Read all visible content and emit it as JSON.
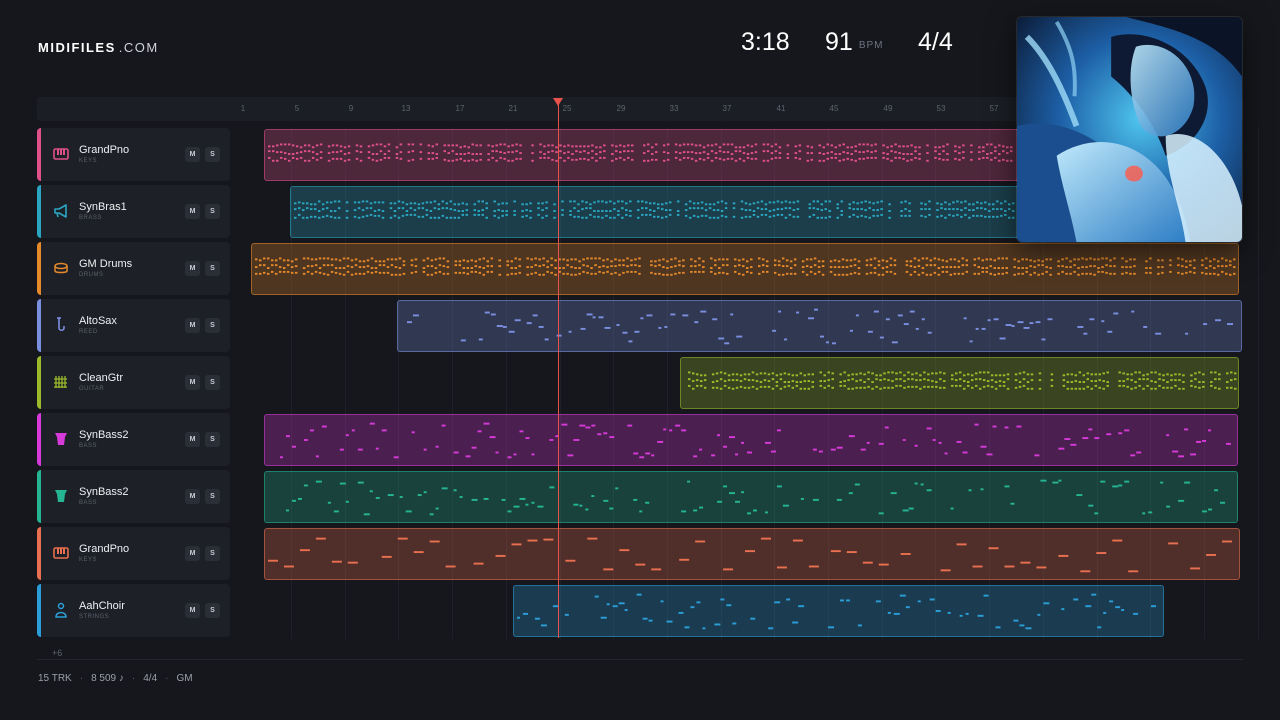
{
  "brand": {
    "name": "MIDIFILES",
    "suffix": ".COM"
  },
  "header": {
    "time": "3:18",
    "bpm": "91",
    "bpm_unit": "BPM",
    "signature": "4/4"
  },
  "ruler": {
    "bars": [
      "1",
      "5",
      "9",
      "13",
      "17",
      "21",
      "25",
      "29",
      "33",
      "37",
      "41",
      "45",
      "49",
      "53",
      "57"
    ]
  },
  "tracks": [
    {
      "name": "GrandPno",
      "category": "KEYS",
      "icon": "piano-icon",
      "color": "#e0518a",
      "mute": "M",
      "solo": "S"
    },
    {
      "name": "SynBras1",
      "category": "BRASS",
      "icon": "horn-icon",
      "color": "#2aa6c2",
      "mute": "M",
      "solo": "S"
    },
    {
      "name": "GM Drums",
      "category": "DRUMS",
      "icon": "drum-icon",
      "color": "#e5892b",
      "mute": "M",
      "solo": "S"
    },
    {
      "name": "AltoSax",
      "category": "REED",
      "icon": "sax-icon",
      "color": "#7b8fe0",
      "mute": "M",
      "solo": "S"
    },
    {
      "name": "CleanGtr",
      "category": "GUITAR",
      "icon": "guitar-icon",
      "color": "#9bbb2a",
      "mute": "M",
      "solo": "S"
    },
    {
      "name": "SynBass2",
      "category": "BASS",
      "icon": "bass-icon",
      "color": "#d63ad8",
      "mute": "M",
      "solo": "S"
    },
    {
      "name": "SynBass2",
      "category": "BASS",
      "icon": "bass-icon",
      "color": "#26b593",
      "mute": "M",
      "solo": "S"
    },
    {
      "name": "GrandPno",
      "category": "KEYS",
      "icon": "piano-icon",
      "color": "#e86f4f",
      "mute": "M",
      "solo": "S"
    },
    {
      "name": "AahChoir",
      "category": "STRINGS",
      "icon": "choir-icon",
      "color": "#2b9ed8",
      "mute": "M",
      "solo": "S"
    }
  ],
  "more_tracks": "+6",
  "footer": {
    "tracks": "15 TRK",
    "notes": "8 509 ♪",
    "signature": "4/4",
    "standard": "GM"
  }
}
